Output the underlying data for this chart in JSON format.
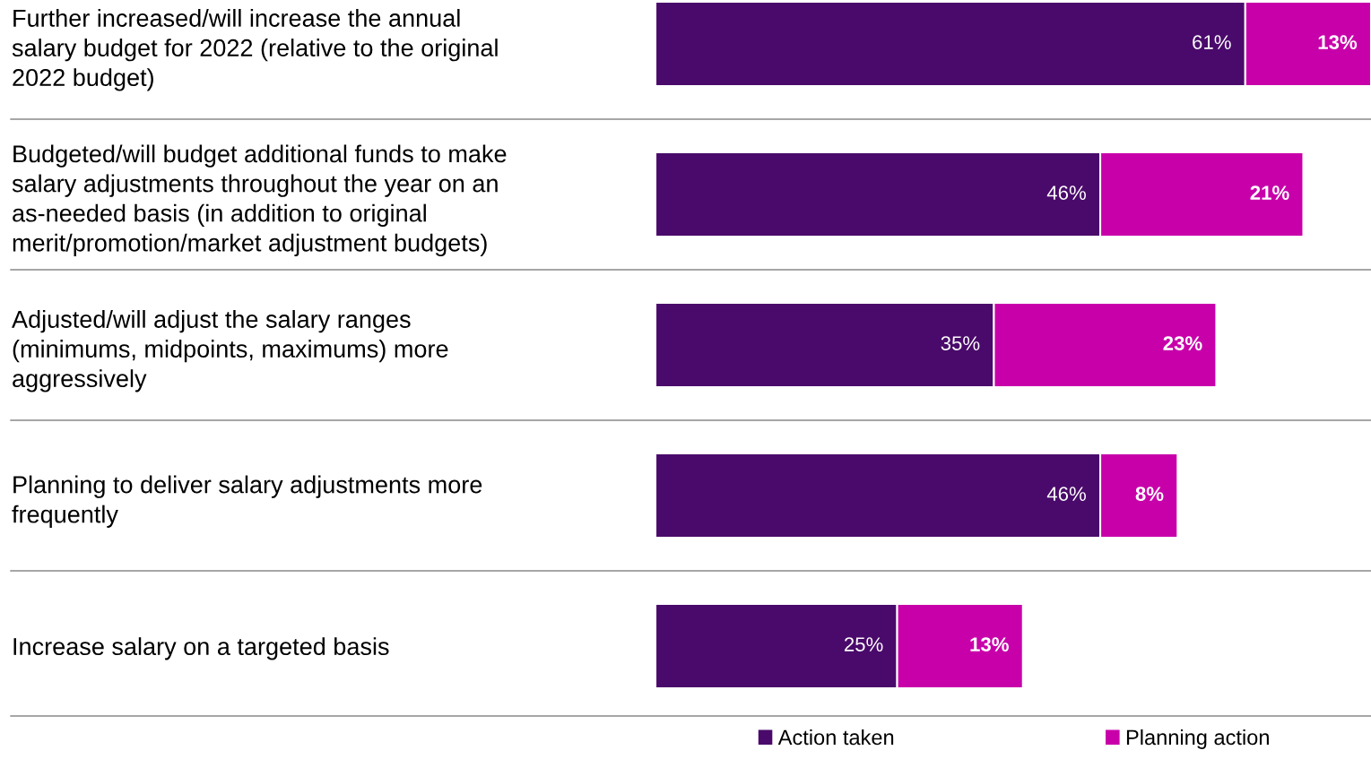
{
  "chart_data": {
    "type": "bar",
    "orientation": "horizontal",
    "stacked": true,
    "categories": [
      "Further increased/will increase the annual\nsalary budget for 2022 (relative to the original\n2022 budget)",
      "Budgeted/will budget additional funds to make\nsalary adjustments throughout the year on an\nas-needed basis (in addition to original\nmerit/promotion/market adjustment budgets)",
      "Adjusted/will adjust the salary ranges\n(minimums, midpoints, maximums) more\naggressively",
      "Planning to deliver salary adjustments more\nfrequently",
      "Increase salary on a targeted basis"
    ],
    "series": [
      {
        "name": "Action taken",
        "color": "#4a0a6b",
        "values": [
          61,
          46,
          35,
          46,
          25
        ],
        "value_labels": [
          "61%",
          "46%",
          "35%",
          "46%",
          "25%"
        ]
      },
      {
        "name": "Planning action",
        "color": "#c800aa",
        "values": [
          13,
          21,
          23,
          8,
          13
        ],
        "value_labels": [
          "13%",
          "21%",
          "23%",
          "8%",
          "13%"
        ]
      }
    ],
    "legend": "bottom",
    "grid": false,
    "tick_labels": "y"
  }
}
